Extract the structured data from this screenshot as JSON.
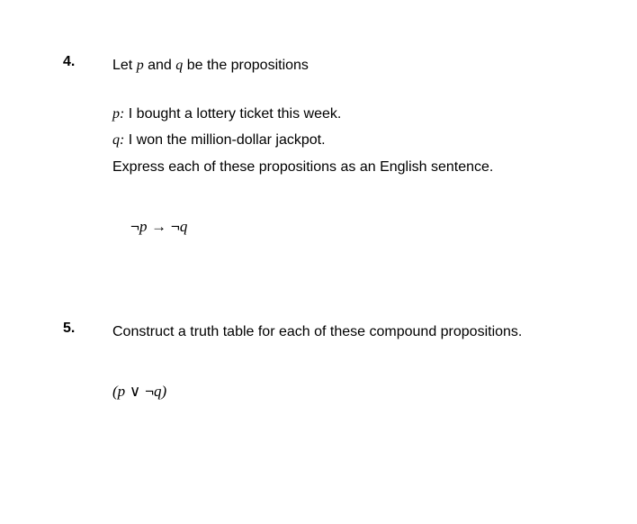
{
  "q4": {
    "number": "4.",
    "intro_prefix": "Let ",
    "intro_p": "p",
    "intro_and": " and ",
    "intro_q": "q",
    "intro_suffix": " be the propositions",
    "p_label": "p:",
    "p_text": " I bought a lottery ticket this week.",
    "q_label": "q:",
    "q_text": " I won the million-dollar jackpot.",
    "instruction": "Express each of these propositions as an English sentence.",
    "formula_neg1": "¬",
    "formula_p": "p",
    "formula_arrow": " → ",
    "formula_neg2": "¬",
    "formula_q": "q"
  },
  "q5": {
    "number": "5.",
    "instruction": "Construct a truth table for each of these compound propositions.",
    "formula_open": "(",
    "formula_p": "p",
    "formula_or": " ∨ ",
    "formula_neg": "¬",
    "formula_q": "q",
    "formula_close": ")"
  },
  "styles": {
    "background_color": "#ffffff",
    "text_color": "#000000",
    "body_fontsize": 16,
    "formula_fontsize": 17,
    "number_fontweight": "bold"
  }
}
